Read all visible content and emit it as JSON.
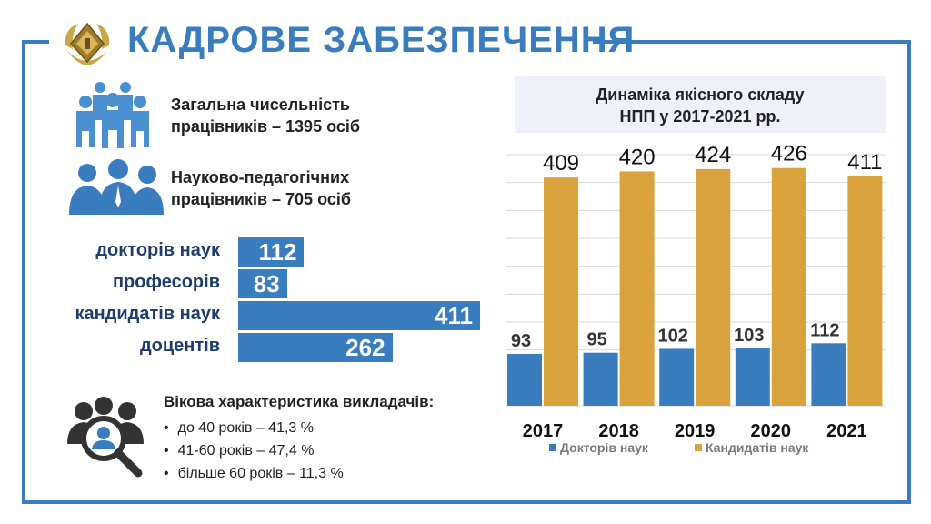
{
  "header": {
    "title": "КАДРОВЕ ЗАБЕЗПЕЧЕННЯ",
    "logo_icon": "emblem-icon"
  },
  "stats": [
    {
      "line1": "Загальна чисельність",
      "line2": "працівників – 1395 осіб",
      "icon": "people-group-icon"
    },
    {
      "line1": "Науково-педагогічних",
      "line2": "працівників – 705 осіб",
      "icon": "staff-icon"
    }
  ],
  "hbars": [
    {
      "label": "докторів наук",
      "value": 112
    },
    {
      "label": "професорів",
      "value": 83
    },
    {
      "label": "кандидатів наук",
      "value": 411
    },
    {
      "label": "доцентів",
      "value": 262
    }
  ],
  "age": {
    "title": "Вікова характеристика викладачів:",
    "items": [
      "до 40 років – 41,3 %",
      "41-60 років – 47,4 %",
      "більше 60 років – 11,3 %"
    ],
    "icon": "people-search-icon"
  },
  "chart_data": {
    "type": "bar",
    "title_line1": "Динаміка якісного складу",
    "title_line2": "НПП у 2017-2021 рр.",
    "categories": [
      "2017",
      "2018",
      "2019",
      "2020",
      "2021"
    ],
    "series": [
      {
        "name": "Докторів наук",
        "values": [
          93,
          95,
          102,
          103,
          112
        ],
        "color": "#3a7dbf"
      },
      {
        "name": "Кандидатів наук",
        "values": [
          409,
          420,
          424,
          426,
          411
        ],
        "color": "#d9a23c"
      }
    ],
    "ylim": [
      0,
      450
    ],
    "grid": true,
    "legend": "bottom"
  }
}
